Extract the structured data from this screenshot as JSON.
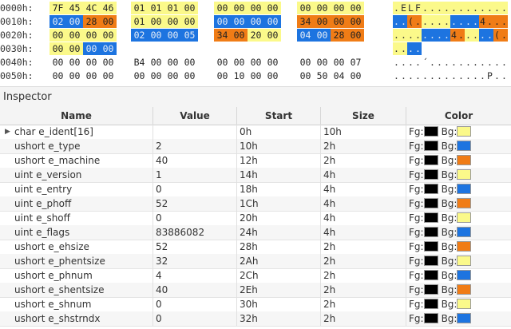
{
  "hex_view": {
    "rows": [
      {
        "addr": "0000h:",
        "bytes": [
          "7F",
          "45",
          "4C",
          "46",
          "01",
          "01",
          "01",
          "00",
          "00",
          "00",
          "00",
          "00",
          "00",
          "00",
          "00",
          "00"
        ],
        "ascii": [
          ".",
          "E",
          "L",
          "F",
          ".",
          ".",
          ".",
          ".",
          ".",
          ".",
          ".",
          ".",
          ".",
          ".",
          ".",
          "."
        ],
        "colors": [
          "y",
          "y",
          "y",
          "y",
          "y",
          "y",
          "y",
          "y",
          "y",
          "y",
          "y",
          "y",
          "y",
          "y",
          "y",
          "y"
        ]
      },
      {
        "addr": "0010h:",
        "bytes": [
          "02",
          "00",
          "28",
          "00",
          "01",
          "00",
          "00",
          "00",
          "00",
          "00",
          "00",
          "00",
          "34",
          "00",
          "00",
          "00"
        ],
        "ascii": [
          ".",
          ".",
          "(",
          ".",
          ".",
          ".",
          ".",
          ".",
          ".",
          ".",
          ".",
          ".",
          "4",
          ".",
          ".",
          "."
        ],
        "colors": [
          "b",
          "b",
          "o",
          "o",
          "y",
          "y",
          "y",
          "y",
          "b",
          "b",
          "b",
          "b",
          "o",
          "o",
          "o",
          "o"
        ]
      },
      {
        "addr": "0020h:",
        "bytes": [
          "00",
          "00",
          "00",
          "00",
          "02",
          "00",
          "00",
          "05",
          "34",
          "00",
          "20",
          "00",
          "04",
          "00",
          "28",
          "00"
        ],
        "ascii": [
          ".",
          ".",
          ".",
          ".",
          ".",
          ".",
          ".",
          ".",
          "4",
          ".",
          ".",
          ".",
          ".",
          ".",
          "(",
          "."
        ],
        "colors": [
          "y",
          "y",
          "y",
          "y",
          "b",
          "b",
          "b",
          "b",
          "o",
          "o",
          "y",
          "y",
          "b",
          "b",
          "o",
          "o"
        ]
      },
      {
        "addr": "0030h:",
        "bytes": [
          "00",
          "00",
          "00",
          "00",
          "",
          "",
          "",
          "",
          "",
          "",
          "",
          "",
          "",
          "",
          "",
          ""
        ],
        "ascii": [
          ".",
          ".",
          ".",
          ".",
          "",
          "",
          "",
          "",
          "",
          "",
          "",
          "",
          "",
          "",
          "",
          ""
        ],
        "colors": [
          "y",
          "y",
          "b",
          "b",
          "n",
          "n",
          "n",
          "n",
          "n",
          "n",
          "n",
          "n",
          "n",
          "n",
          "n",
          "n"
        ]
      },
      {
        "addr": "0040h:",
        "bytes": [
          "00",
          "00",
          "00",
          "00",
          "B4",
          "00",
          "00",
          "00",
          "00",
          "00",
          "00",
          "00",
          "00",
          "00",
          "00",
          "07"
        ],
        "ascii": [
          ".",
          ".",
          ".",
          ".",
          "´",
          ".",
          ".",
          ".",
          ".",
          ".",
          ".",
          ".",
          ".",
          ".",
          ".",
          "."
        ],
        "colors": [
          "n",
          "n",
          "n",
          "n",
          "n",
          "n",
          "n",
          "n",
          "n",
          "n",
          "n",
          "n",
          "n",
          "n",
          "n",
          "n"
        ]
      },
      {
        "addr": "0050h:",
        "bytes": [
          "00",
          "00",
          "00",
          "00",
          "00",
          "00",
          "00",
          "00",
          "00",
          "10",
          "00",
          "00",
          "00",
          "50",
          "04",
          "00"
        ],
        "ascii": [
          ".",
          ".",
          ".",
          ".",
          ".",
          ".",
          ".",
          ".",
          ".",
          ".",
          ".",
          ".",
          ".",
          "P",
          ".",
          "."
        ],
        "colors": [
          "n",
          "n",
          "n",
          "n",
          "n",
          "n",
          "n",
          "n",
          "n",
          "n",
          "n",
          "n",
          "n",
          "n",
          "n",
          "n"
        ]
      }
    ]
  },
  "inspector": {
    "title": "Inspector",
    "columns": {
      "name": "Name",
      "value": "Value",
      "start": "Start",
      "size": "Size",
      "color": "Color"
    },
    "fg_label": "Fg:",
    "bg_label": "Bg:",
    "colors": {
      "black": "#000000",
      "yellow": "#fbf98a",
      "blue": "#1d74e0",
      "orange": "#f07c16"
    },
    "rows": [
      {
        "name": "char e_ident[16]",
        "value": "",
        "start": "0h",
        "size": "10h",
        "bg": "yellow",
        "expandable": true
      },
      {
        "name": "ushort e_type",
        "value": "2",
        "start": "10h",
        "size": "2h",
        "bg": "blue"
      },
      {
        "name": "ushort e_machine",
        "value": "40",
        "start": "12h",
        "size": "2h",
        "bg": "orange"
      },
      {
        "name": "uint e_version",
        "value": "1",
        "start": "14h",
        "size": "4h",
        "bg": "yellow"
      },
      {
        "name": "uint e_entry",
        "value": "0",
        "start": "18h",
        "size": "4h",
        "bg": "blue"
      },
      {
        "name": "uint e_phoff",
        "value": "52",
        "start": "1Ch",
        "size": "4h",
        "bg": "orange"
      },
      {
        "name": "uint e_shoff",
        "value": "0",
        "start": "20h",
        "size": "4h",
        "bg": "yellow"
      },
      {
        "name": "uint e_flags",
        "value": "83886082",
        "start": "24h",
        "size": "4h",
        "bg": "blue"
      },
      {
        "name": "ushort e_ehsize",
        "value": "52",
        "start": "28h",
        "size": "2h",
        "bg": "orange"
      },
      {
        "name": "ushort e_phentsize",
        "value": "32",
        "start": "2Ah",
        "size": "2h",
        "bg": "yellow"
      },
      {
        "name": "ushort e_phnum",
        "value": "4",
        "start": "2Ch",
        "size": "2h",
        "bg": "blue"
      },
      {
        "name": "ushort e_shentsize",
        "value": "40",
        "start": "2Eh",
        "size": "2h",
        "bg": "orange"
      },
      {
        "name": "ushort e_shnum",
        "value": "0",
        "start": "30h",
        "size": "2h",
        "bg": "yellow"
      },
      {
        "name": "ushort e_shstrndx",
        "value": "0",
        "start": "32h",
        "size": "2h",
        "bg": "blue"
      }
    ]
  }
}
